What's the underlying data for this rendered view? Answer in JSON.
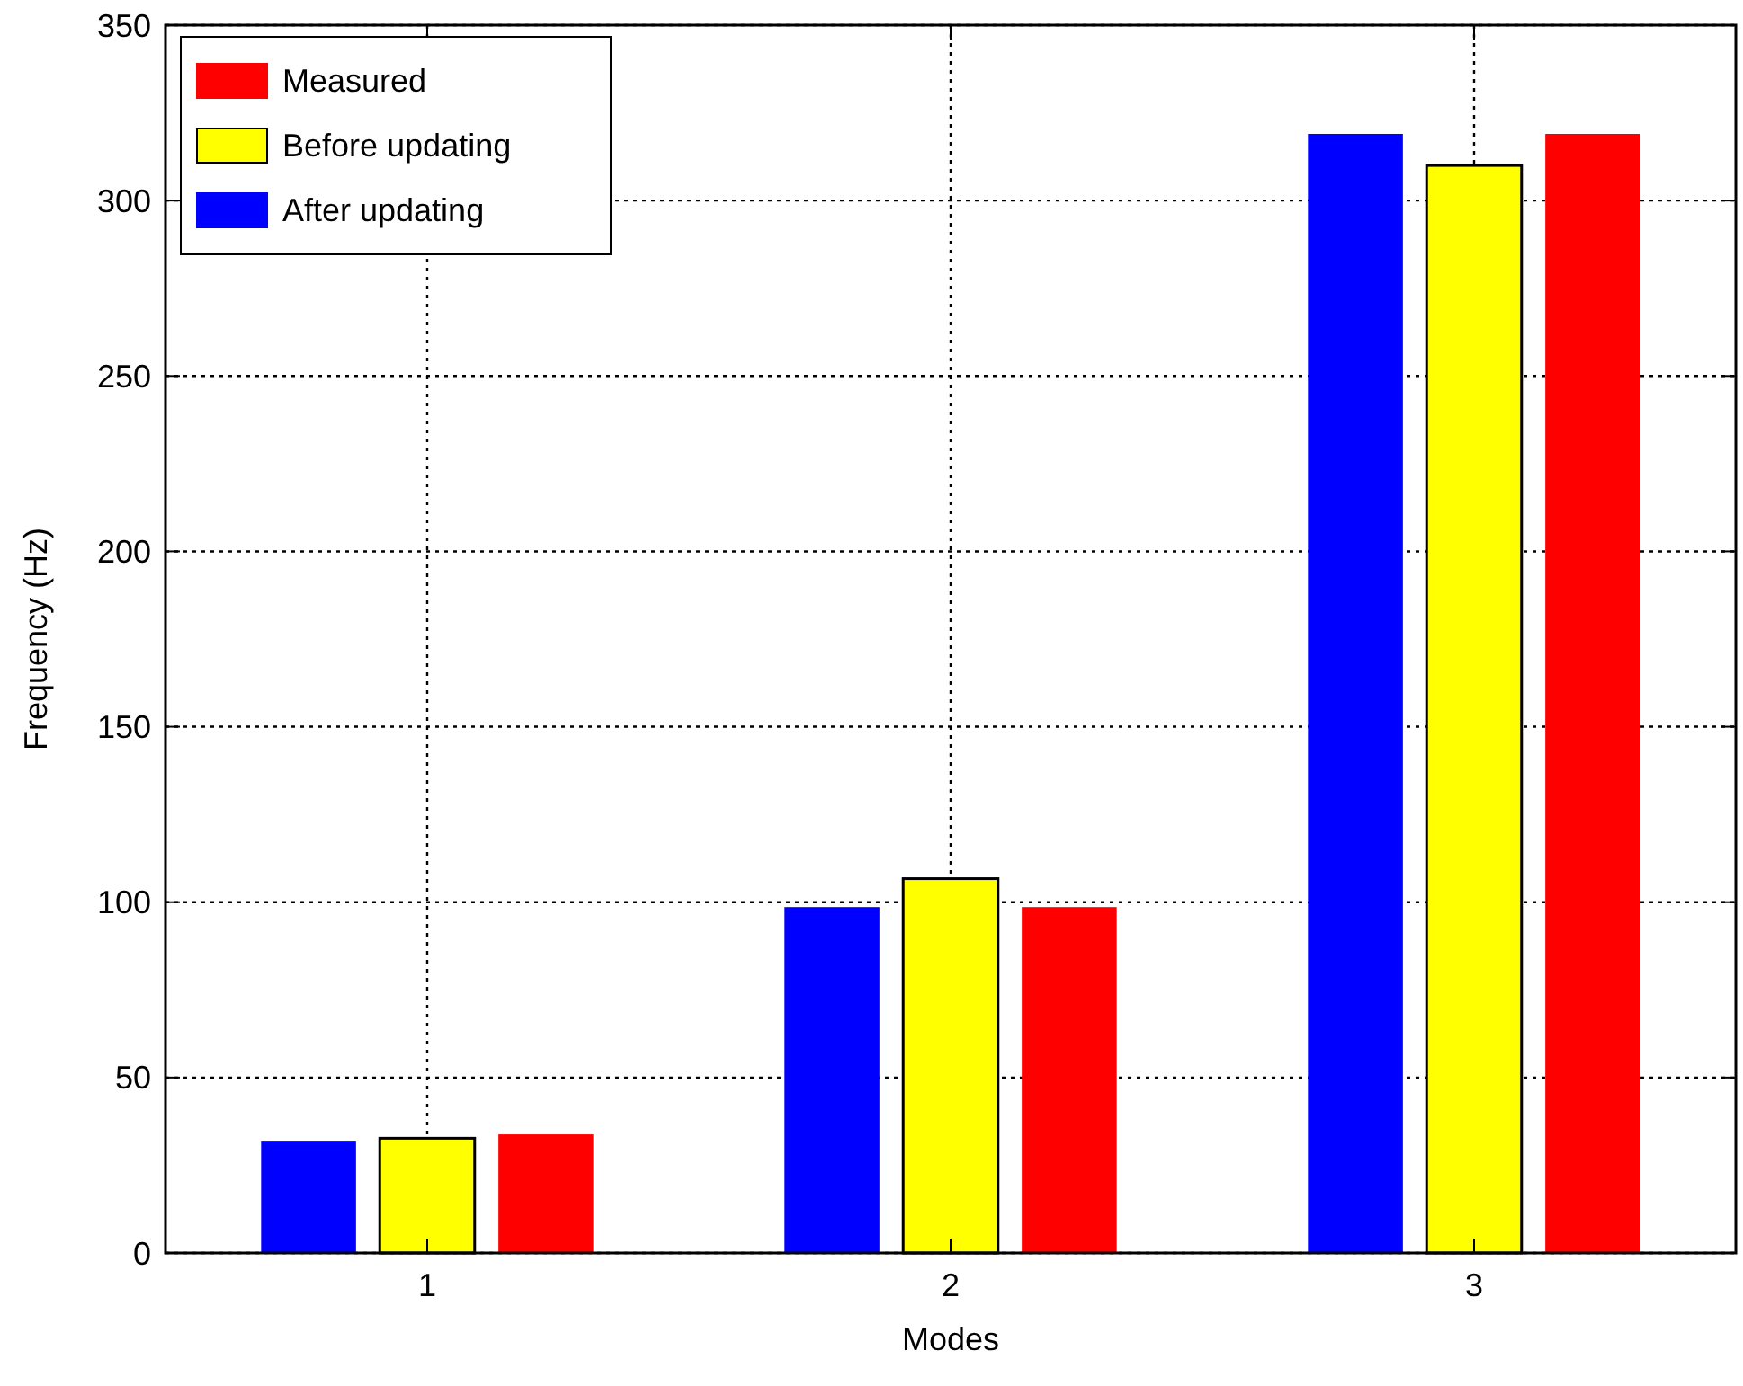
{
  "chart_data": {
    "type": "bar",
    "xlabel": "Modes",
    "ylabel": "Frequency (Hz)",
    "categories": [
      "1",
      "2",
      "3"
    ],
    "series": [
      {
        "name": "After updating",
        "color": "#0000ff",
        "values": [
          32.0,
          98.6,
          319
        ]
      },
      {
        "name": "Before updating",
        "color": "#ffff00",
        "values": [
          32.7,
          106.7,
          310
        ]
      },
      {
        "name": "Measured",
        "color": "#ff0000",
        "values": [
          33.8,
          98.6,
          319
        ]
      }
    ],
    "ylim": [
      0,
      350
    ],
    "yticks": [
      0,
      50,
      100,
      150,
      200,
      250,
      300,
      350
    ],
    "grid": true,
    "legend": "top left"
  }
}
